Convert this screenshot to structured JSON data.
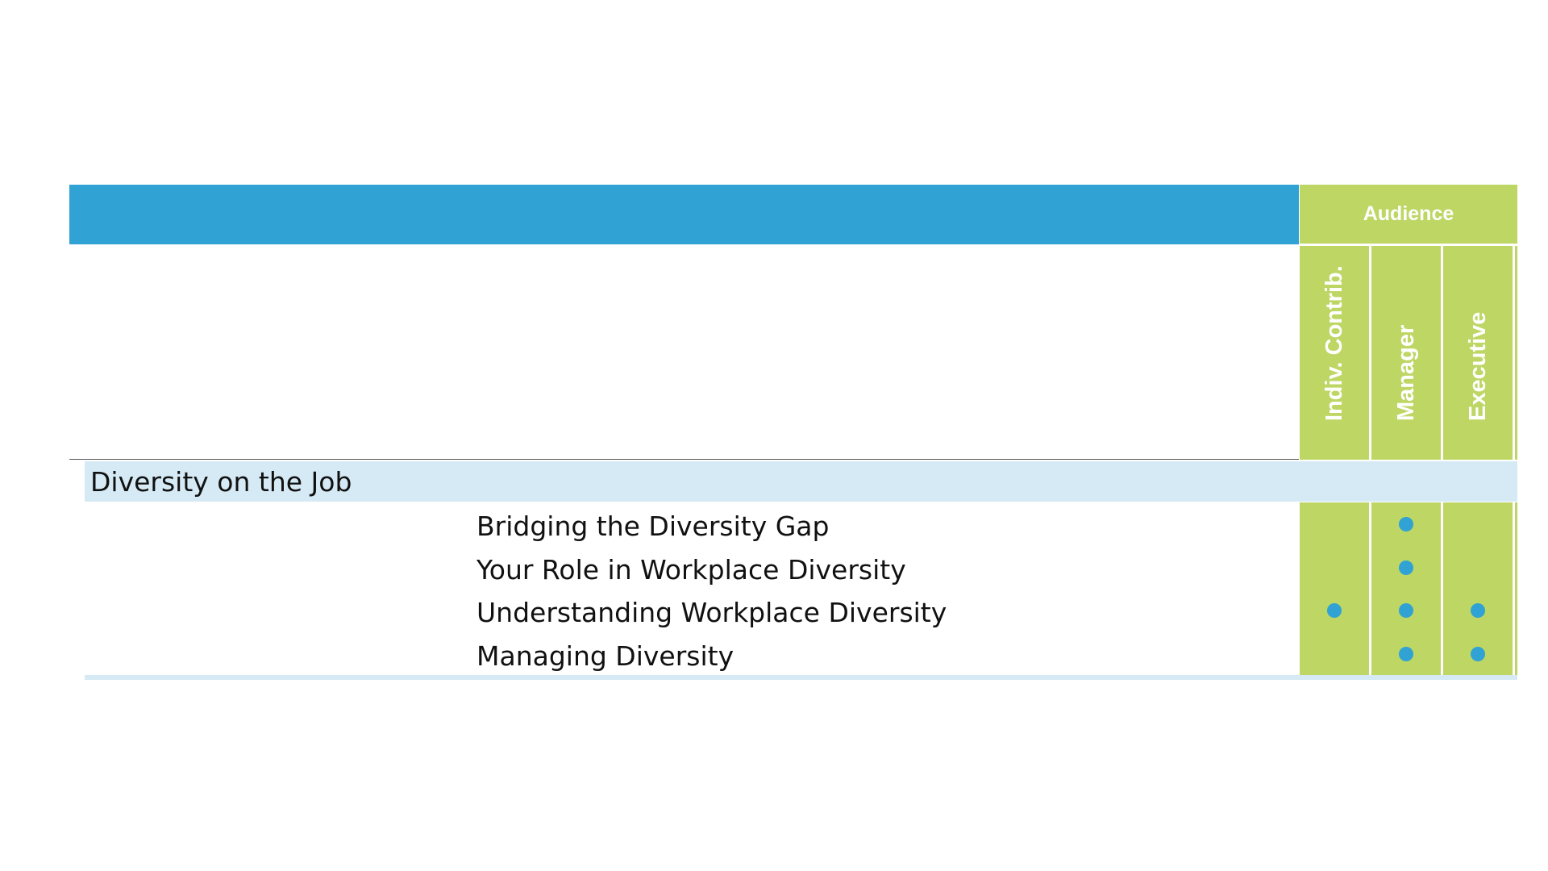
{
  "table": {
    "audience_label": "Audience",
    "columns": [
      "Indiv. Contrib.",
      "Manager",
      "Executive"
    ],
    "section_title": "Diversity on the Job",
    "rows": [
      {
        "title": "Bridging the Diversity Gap",
        "indiv_contrib": false,
        "manager": true,
        "executive": false
      },
      {
        "title": "Your Role in Workplace Diversity",
        "indiv_contrib": false,
        "manager": true,
        "executive": false
      },
      {
        "title": "Understanding Workplace Diversity",
        "indiv_contrib": true,
        "manager": true,
        "executive": true
      },
      {
        "title": "Managing Diversity",
        "indiv_contrib": false,
        "manager": true,
        "executive": true
      }
    ]
  },
  "colors": {
    "header_blue": "#30a2d4",
    "audience_green": "#bdd664",
    "section_band": "#d5eaf5",
    "dot_blue": "#30a2d4"
  }
}
